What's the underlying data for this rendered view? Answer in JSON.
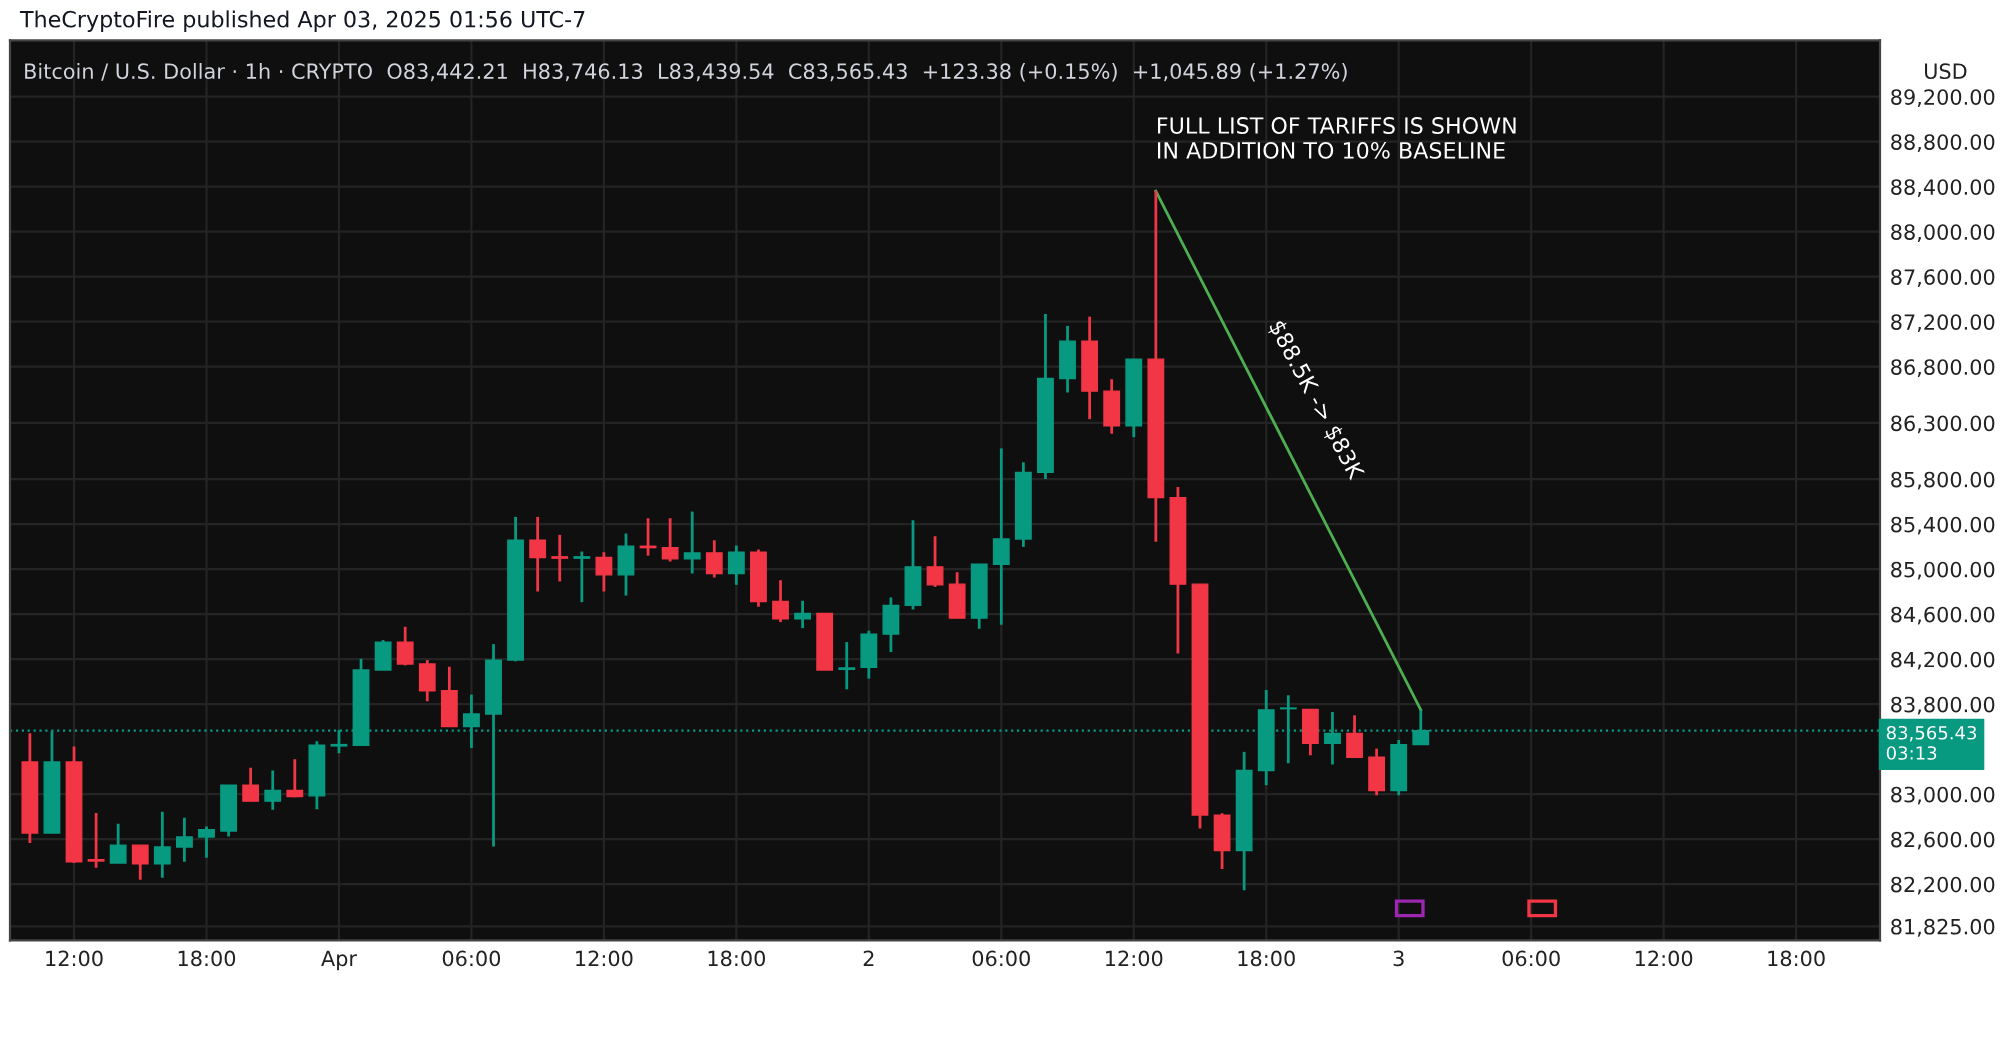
{
  "chart_data": {
    "type": "candlestick",
    "title": "Bitcoin / U.S. Dollar · 1h · CRYPTO  O83,442.21  H83,746.13  L83,439.54  C83,565.43  +123.38 (+0.15%)  +1,045.89 (+1.27%)",
    "ylabel": "USD",
    "annotations": [
      "TheCryptoFire published Apr 03, 2025 01:56 UTC-7",
      {
        "text": "FULL LIST OF TARIFFS IS SHOWN\nIN ADDITION TO 10% BASELINE",
        "x": "2025-04-02T13:00",
        "y": 88360
      },
      "$88.5K -> $83K"
    ],
    "x": [
      "2025-03-31T10:00",
      "2025-03-31T11:00",
      "2025-03-31T12:00",
      "2025-03-31T13:00",
      "2025-03-31T14:00",
      "2025-03-31T15:00",
      "2025-03-31T16:00",
      "2025-03-31T17:00",
      "2025-03-31T18:00",
      "2025-03-31T19:00",
      "2025-03-31T20:00",
      "2025-03-31T21:00",
      "2025-03-31T22:00",
      "2025-03-31T23:00",
      "2025-04-01T00:00",
      "2025-04-01T01:00",
      "2025-04-01T02:00",
      "2025-04-01T03:00",
      "2025-04-01T04:00",
      "2025-04-01T05:00",
      "2025-04-01T06:00",
      "2025-04-01T07:00",
      "2025-04-01T08:00",
      "2025-04-01T09:00",
      "2025-04-01T10:00",
      "2025-04-01T11:00",
      "2025-04-01T12:00",
      "2025-04-01T13:00",
      "2025-04-01T14:00",
      "2025-04-01T15:00",
      "2025-04-01T16:00",
      "2025-04-01T17:00",
      "2025-04-01T18:00",
      "2025-04-01T19:00",
      "2025-04-01T20:00",
      "2025-04-01T21:00",
      "2025-04-01T22:00",
      "2025-04-01T23:00",
      "2025-04-02T00:00",
      "2025-04-02T01:00",
      "2025-04-02T02:00",
      "2025-04-02T03:00",
      "2025-04-02T04:00",
      "2025-04-02T05:00",
      "2025-04-02T06:00",
      "2025-04-02T07:00",
      "2025-04-02T08:00",
      "2025-04-02T09:00",
      "2025-04-02T10:00",
      "2025-04-02T11:00",
      "2025-04-02T12:00",
      "2025-04-02T13:00",
      "2025-04-02T14:00",
      "2025-04-02T15:00",
      "2025-04-02T16:00",
      "2025-04-02T17:00",
      "2025-04-02T18:00",
      "2025-04-02T19:00",
      "2025-04-02T20:00",
      "2025-04-02T21:00",
      "2025-04-02T22:00",
      "2025-04-02T23:00",
      "2025-04-03T00:00",
      "2025-04-03T01:00"
    ],
    "ohlc": [
      [
        83287,
        83542,
        82565,
        82654
      ],
      [
        82654,
        83559,
        82654,
        83287
      ],
      [
        83287,
        83423,
        82388,
        82400
      ],
      [
        82417,
        82832,
        82346,
        82405
      ],
      [
        82388,
        82737,
        82388,
        82547
      ],
      [
        82547,
        82547,
        82240,
        82382
      ],
      [
        82382,
        82843,
        82258,
        82530
      ],
      [
        82530,
        82790,
        82400,
        82619
      ],
      [
        82619,
        82713,
        82435,
        82684
      ],
      [
        82672,
        83080,
        82624,
        83080
      ],
      [
        83080,
        83234,
        82938,
        82938
      ],
      [
        82938,
        83210,
        82861,
        83033
      ],
      [
        83033,
        83311,
        82973,
        82979
      ],
      [
        82985,
        83471,
        82867,
        83435
      ],
      [
        83429,
        83571,
        83364,
        83441
      ],
      [
        83435,
        84204,
        83435,
        84104
      ],
      [
        84104,
        84370,
        84104,
        84352
      ],
      [
        84352,
        84488,
        84145,
        84157
      ],
      [
        84157,
        84192,
        83826,
        83920
      ],
      [
        83920,
        84133,
        83601,
        83601
      ],
      [
        83601,
        83885,
        83411,
        83713
      ],
      [
        83713,
        84334,
        82536,
        84192
      ],
      [
        84192,
        85465,
        84181,
        85257
      ],
      [
        85257,
        85465,
        84802,
        85104
      ],
      [
        85110,
        85305,
        84891,
        85098
      ],
      [
        85098,
        85157,
        84707,
        85110
      ],
      [
        85104,
        85151,
        84802,
        84950
      ],
      [
        84950,
        85317,
        84766,
        85204
      ],
      [
        85204,
        85453,
        85121,
        85192
      ],
      [
        85192,
        85453,
        85068,
        85092
      ],
      [
        85092,
        85512,
        84962,
        85145
      ],
      [
        85145,
        85257,
        84926,
        84962
      ],
      [
        84962,
        85210,
        84861,
        85151
      ],
      [
        85151,
        85175,
        84666,
        84713
      ],
      [
        84713,
        84902,
        84530,
        84559
      ],
      [
        84559,
        84719,
        84476,
        84607
      ],
      [
        84607,
        84607,
        84104,
        84104
      ],
      [
        84110,
        84352,
        83932,
        84122
      ],
      [
        84127,
        84453,
        84027,
        84423
      ],
      [
        84423,
        84749,
        84263,
        84678
      ],
      [
        84678,
        85435,
        84642,
        85021
      ],
      [
        85021,
        85293,
        84843,
        84861
      ],
      [
        84867,
        84973,
        84565,
        84565
      ],
      [
        84565,
        85045,
        84470,
        85044
      ],
      [
        85044,
        86074,
        84506,
        85269
      ],
      [
        85269,
        85950,
        85198,
        85861
      ],
      [
        85861,
        87269,
        85802,
        86695
      ],
      [
        86695,
        87163,
        86571,
        87027
      ],
      [
        87027,
        87245,
        86334,
        86583
      ],
      [
        86583,
        86689,
        86204,
        86275
      ],
      [
        86275,
        86867,
        86174,
        86867
      ],
      [
        86867,
        88364,
        85245,
        85636
      ],
      [
        85636,
        85731,
        84251,
        84867
      ],
      [
        84867,
        84867,
        82695,
        82814
      ],
      [
        82814,
        82831,
        82334,
        82500
      ],
      [
        82500,
        83376,
        82145,
        83210
      ],
      [
        83210,
        83926,
        83080,
        83749
      ],
      [
        83760,
        83879,
        83275,
        83766
      ],
      [
        83754,
        83754,
        83346,
        83453
      ],
      [
        83453,
        83731,
        83263,
        83541
      ],
      [
        83541,
        83701,
        83328,
        83328
      ],
      [
        83328,
        83405,
        82991,
        83032
      ],
      [
        83032,
        83482,
        82991,
        83441
      ],
      [
        83442.21,
        83746.13,
        83439.54,
        83565.43
      ]
    ],
    "series": [
      {
        "type": "line",
        "x": [
          "2025-04-02T13:00",
          "2025-04-03T01:00"
        ],
        "values": [
          88360,
          83750
        ],
        "color": "#4caf50"
      }
    ],
    "ref_lines": [
      {
        "axis": "y",
        "value": 83565.43,
        "label": "83,565.43\n03:13",
        "color": "#089981",
        "line_style": "dotted"
      }
    ],
    "xlim": [
      "2025-03-31T09:06",
      "2025-04-03T21:48"
    ],
    "xticks": [
      {
        "value": "2025-03-31T12:00",
        "label": "12:00"
      },
      {
        "value": "2025-03-31T18:00",
        "label": "18:00"
      },
      {
        "value": "2025-04-01T00:00",
        "label": "Apr"
      },
      {
        "value": "2025-04-01T06:00",
        "label": "06:00"
      },
      {
        "value": "2025-04-01T12:00",
        "label": "12:00"
      },
      {
        "value": "2025-04-01T18:00",
        "label": "18:00"
      },
      {
        "value": "2025-04-02T00:00",
        "label": "2"
      },
      {
        "value": "2025-04-02T06:00",
        "label": "06:00"
      },
      {
        "value": "2025-04-02T12:00",
        "label": "12:00"
      },
      {
        "value": "2025-04-02T18:00",
        "label": "18:00"
      },
      {
        "value": "2025-04-03T00:00",
        "label": "3"
      },
      {
        "value": "2025-04-03T06:00",
        "label": "06:00"
      },
      {
        "value": "2025-04-03T12:00",
        "label": "12:00"
      },
      {
        "value": "2025-04-03T18:00",
        "label": "18:00"
      }
    ],
    "ylim": [
      81700,
      89700
    ],
    "yticks": [
      {
        "value": 81825,
        "label": "81,825.00"
      },
      {
        "value": 82200,
        "label": "82,200.00"
      },
      {
        "value": 82600,
        "label": "82,600.00"
      },
      {
        "value": 83000,
        "label": "83,000.00"
      },
      {
        "value": 83800,
        "label": "83,800.00"
      },
      {
        "value": 84200,
        "label": "84,200.00"
      },
      {
        "value": 84600,
        "label": "84,600.00"
      },
      {
        "value": 85000,
        "label": "85,000.00"
      },
      {
        "value": 85400,
        "label": "85,400.00"
      },
      {
        "value": 85800,
        "label": "85,800.00"
      },
      {
        "value": 86300,
        "label": "86,300.00"
      },
      {
        "value": 86800,
        "label": "86,800.00"
      },
      {
        "value": 87200,
        "label": "87,200.00"
      },
      {
        "value": 87600,
        "label": "87,600.00"
      },
      {
        "value": 88000,
        "label": "88,000.00"
      },
      {
        "value": 88400,
        "label": "88,400.00"
      },
      {
        "value": 88800,
        "label": "88,800.00"
      },
      {
        "value": 89200,
        "label": "89,200.00"
      }
    ],
    "grid": true
  }
}
